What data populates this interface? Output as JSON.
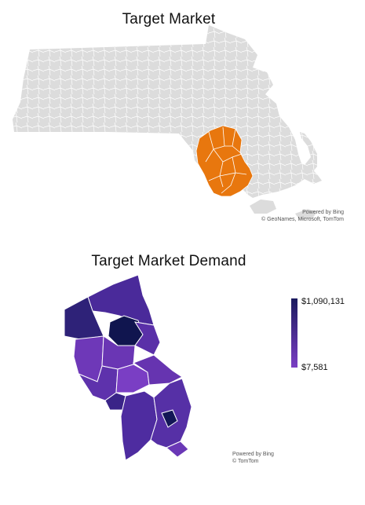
{
  "maps": {
    "top": {
      "title": "Target Market",
      "credit_line1": "Powered by Bing",
      "credit_line2": "© GeoNames, Microsoft, TomTom"
    },
    "bottom": {
      "title": "Target Market Demand",
      "credit_line1": "Powered by Bing",
      "credit_line2": "© TomTom"
    }
  },
  "legend": {
    "max_label": "$1,090,131",
    "min_label": "$7,581",
    "max_value": 1090131,
    "min_value": 7581,
    "color_max": "#1a1a5e",
    "color_min": "#7b3fc4"
  },
  "colors": {
    "state_fill": "#dcdcdc",
    "target_fill": "#e8770e",
    "boundary": "#ffffff"
  }
}
